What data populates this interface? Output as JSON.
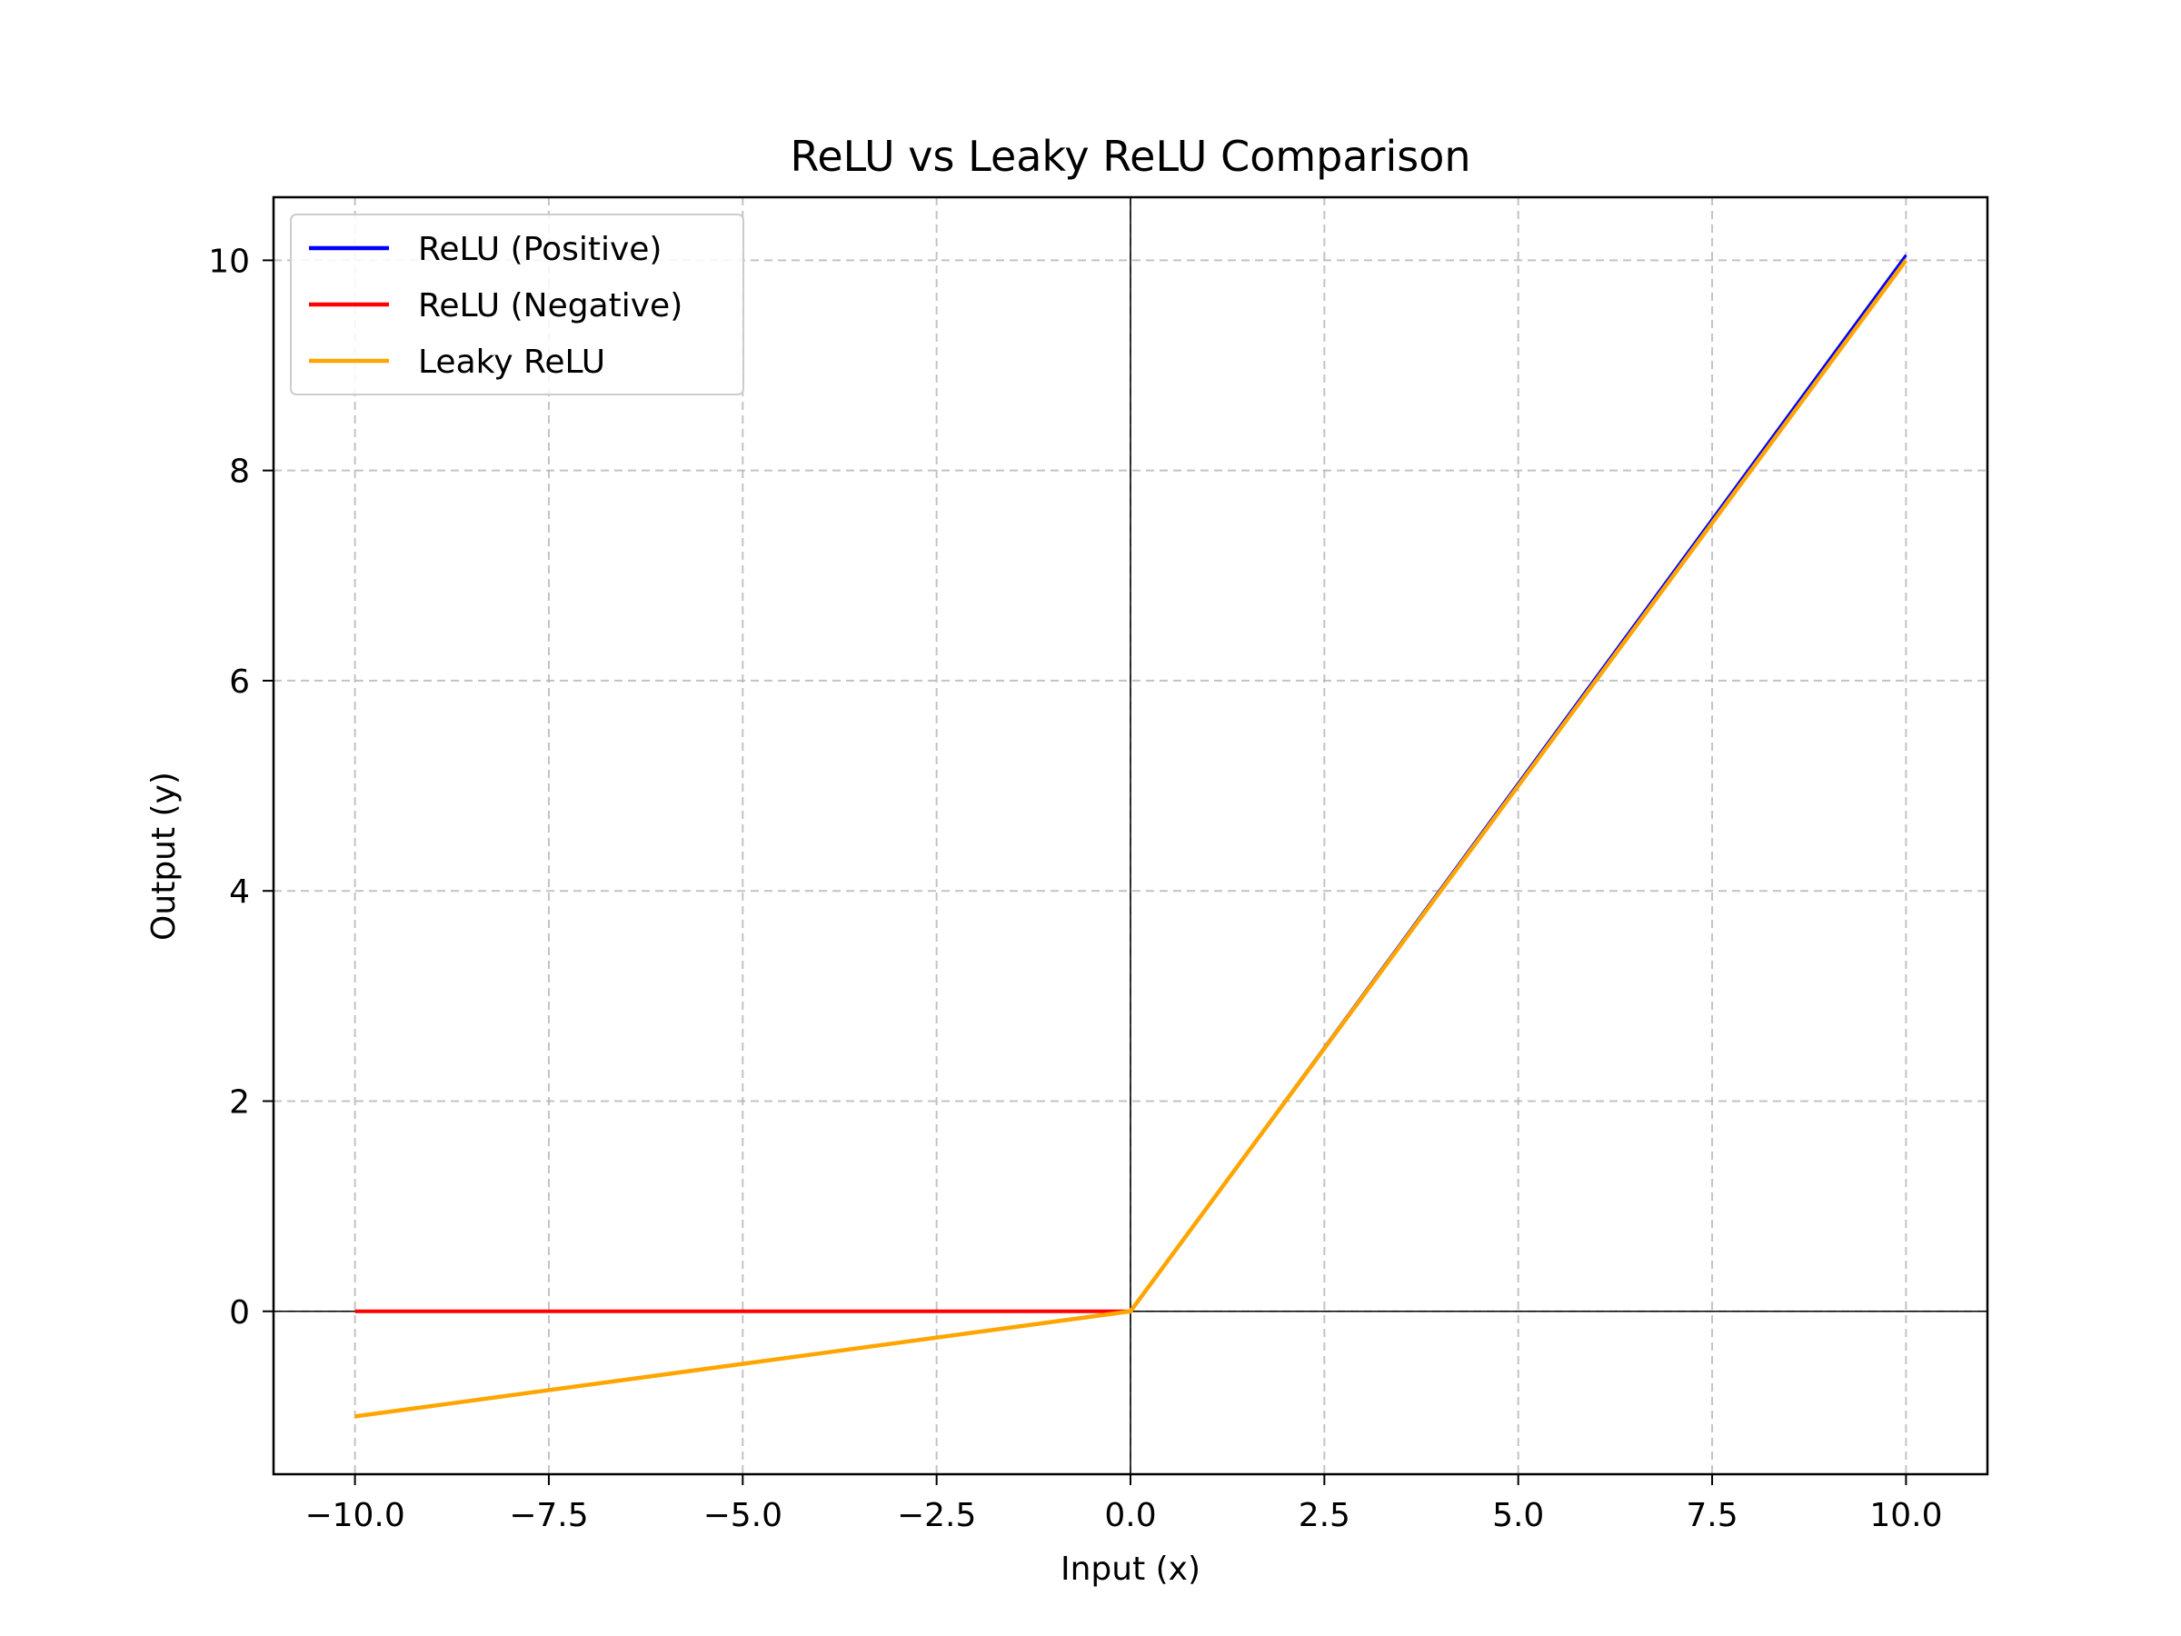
{
  "chart_data": {
    "type": "line",
    "title": "ReLU vs Leaky ReLU Comparison",
    "xlabel": "Input (x)",
    "ylabel": "Output (y)",
    "xlim": [
      -11.05,
      11.05
    ],
    "ylim": [
      -1.55,
      10.6
    ],
    "xticks": [
      -10.0,
      -7.5,
      -5.0,
      -2.5,
      0.0,
      2.5,
      5.0,
      7.5,
      10.0
    ],
    "xtick_labels": [
      "−10.0",
      "−7.5",
      "−5.0",
      "−2.5",
      "0.0",
      "2.5",
      "5.0",
      "7.5",
      "10.0"
    ],
    "yticks": [
      0,
      2,
      4,
      6,
      8,
      10
    ],
    "ytick_labels": [
      "0",
      "2",
      "4",
      "6",
      "8",
      "10"
    ],
    "grid": true,
    "grid_style": "dashed",
    "legend_position": "upper-left",
    "reference_lines": {
      "x": 0,
      "y": 0,
      "color": "#000000"
    },
    "series": [
      {
        "name": "ReLU (Positive)",
        "color": "#0000ff",
        "points": [
          [
            0,
            0
          ],
          [
            10,
            10.05
          ]
        ]
      },
      {
        "name": "ReLU (Negative)",
        "color": "#ff0000",
        "points": [
          [
            -10,
            0
          ],
          [
            0,
            0
          ]
        ]
      },
      {
        "name": "Leaky ReLU",
        "color": "#ffa500",
        "points": [
          [
            -10,
            -1.0
          ],
          [
            0,
            0
          ],
          [
            10,
            10
          ]
        ]
      }
    ]
  }
}
